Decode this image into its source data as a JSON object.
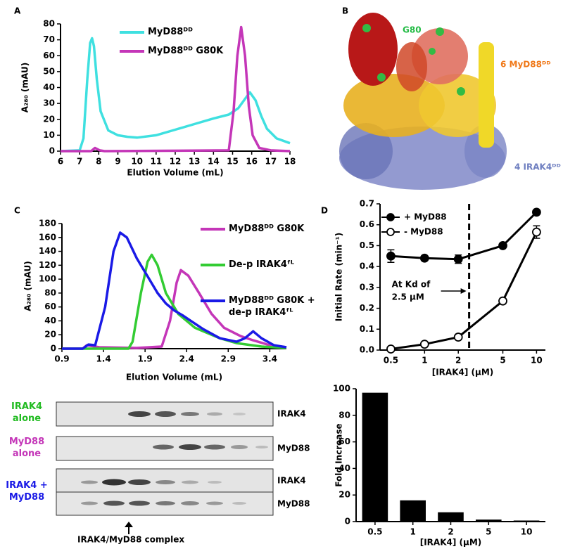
{
  "panel_labels": [
    "A",
    "B",
    "C",
    "D"
  ],
  "structure": {
    "labels": [
      "G80",
      "6 MyD88ᴰᴰ",
      "4 IRAK4ᴰᴰ"
    ]
  },
  "gel": {
    "left_labels": [
      "IRAK4 alone",
      "MyD88 alone",
      "IRAK4 + MyD88"
    ],
    "right_labels": [
      "IRAK4",
      "MyD88",
      "IRAK4",
      "MyD88"
    ],
    "caption": "IRAK4/MyD88 complex"
  },
  "chart_data": [
    {
      "type": "line",
      "x_label": "Elution Volume (mL)",
      "y_label": "A₂₈₀ (mAU)",
      "xlim": [
        6,
        18
      ],
      "xticks": [
        6,
        7,
        8,
        9,
        10,
        11,
        12,
        13,
        14,
        15,
        16,
        17,
        18
      ],
      "ylim": [
        0,
        80
      ],
      "yticks": [
        0,
        10,
        20,
        30,
        40,
        50,
        60,
        70,
        80
      ],
      "series": [
        {
          "name": "MyD88ᴰᴰ",
          "color": "#3fe0e0",
          "x": [
            6,
            7,
            7.2,
            7.4,
            7.55,
            7.65,
            7.75,
            7.9,
            8.1,
            8.5,
            9,
            9.5,
            10,
            11,
            12,
            13,
            14,
            14.8,
            15.3,
            15.6,
            15.9,
            16.2,
            16.5,
            16.8,
            17.3,
            18
          ],
          "values": [
            0,
            0.5,
            8,
            45,
            68,
            71,
            66,
            45,
            25,
            13,
            10,
            9,
            8.5,
            10,
            13.5,
            17,
            20.5,
            23,
            27,
            32,
            37,
            32,
            22,
            14,
            8,
            5
          ]
        },
        {
          "name": "MyD88ᴰᴰ G80K",
          "color": "#c436b8",
          "x": [
            6,
            7.6,
            7.8,
            8.05,
            8.3,
            14.8,
            15.05,
            15.25,
            15.45,
            15.65,
            15.85,
            16.05,
            16.4,
            17,
            18
          ],
          "values": [
            0,
            0,
            2,
            0.5,
            0,
            0.5,
            25,
            60,
            78,
            60,
            28,
            10,
            2,
            0.5,
            0
          ]
        }
      ]
    },
    {
      "type": "line",
      "x_label": "Elution Volume (mL)",
      "y_label": "A₂₈₀ (mAU)",
      "xlim": [
        0.9,
        3.6
      ],
      "xticks": [
        0.9,
        1.4,
        1.9,
        2.4,
        2.9,
        3.4
      ],
      "ylim": [
        0,
        180
      ],
      "yticks": [
        0,
        20,
        40,
        60,
        80,
        100,
        120,
        140,
        160,
        180
      ],
      "series": [
        {
          "name": "MyD88ᴰᴰ G80K",
          "color": "#c436b8",
          "x": [
            0.9,
            1.15,
            1.2,
            1.35,
            1.8,
            2.1,
            2.2,
            2.28,
            2.33,
            2.42,
            2.55,
            2.7,
            2.85,
            3.05,
            3.2,
            3.4,
            3.6
          ],
          "values": [
            0,
            0,
            5,
            2,
            1,
            3,
            40,
            95,
            113,
            105,
            80,
            50,
            30,
            18,
            12,
            5,
            2
          ]
        },
        {
          "name": "De-p IRAK4ᶠᴸ",
          "color": "#33cc33",
          "x": [
            0.9,
            1.7,
            1.75,
            1.85,
            1.93,
            1.98,
            2.05,
            2.15,
            2.3,
            2.5,
            2.8,
            3.0,
            3.3,
            3.6
          ],
          "values": [
            0,
            0,
            10,
            80,
            125,
            135,
            120,
            80,
            50,
            30,
            15,
            8,
            3,
            1
          ]
        },
        {
          "name": "MyD88ᴰᴰ G80K + de-p IRAK4ᶠᴸ",
          "color": "#1a1ae6",
          "x": [
            0.9,
            1.15,
            1.22,
            1.3,
            1.42,
            1.52,
            1.6,
            1.68,
            1.8,
            1.95,
            2.05,
            2.15,
            2.25,
            2.35,
            2.45,
            2.6,
            2.8,
            3.0,
            3.1,
            3.2,
            3.3,
            3.45,
            3.6
          ],
          "values": [
            0,
            0,
            6,
            5,
            60,
            140,
            167,
            160,
            130,
            100,
            80,
            65,
            55,
            48,
            40,
            28,
            15,
            10,
            15,
            25,
            15,
            5,
            2
          ]
        }
      ]
    },
    {
      "type": "errorline",
      "x_label": "[IRAK4] (µM)",
      "y_label": "Initial Rate (min⁻¹)",
      "xlog": true,
      "xlim": [
        0.4,
        12
      ],
      "xticks": [
        0.5,
        1,
        2,
        5,
        10
      ],
      "ylim": [
        0,
        0.7
      ],
      "yticks": [
        {
          "value": 0,
          "label": "0.0"
        },
        0.1,
        0.2,
        0.3,
        0.4,
        0.5,
        0.6,
        0.7
      ],
      "vline": 2.5,
      "annotation": [
        "At Kd of",
        "2.5 µM"
      ],
      "series": [
        {
          "name": "+ MyD88",
          "color": "#000000",
          "marker": "filled",
          "x": [
            0.5,
            1,
            2,
            5,
            10
          ],
          "values": [
            0.45,
            0.44,
            0.435,
            0.5,
            0.66
          ],
          "errors": [
            0.03,
            0.008,
            0.02,
            0.008,
            0.01
          ]
        },
        {
          "name": "- MyD88",
          "color": "#000000",
          "marker": "open",
          "x": [
            0.5,
            1,
            2,
            5,
            10
          ],
          "values": [
            0.005,
            0.028,
            0.062,
            0.235,
            0.565
          ],
          "errors": [
            0.004,
            0.005,
            0.005,
            0.012,
            0.03
          ]
        }
      ]
    },
    {
      "type": "bar",
      "x_label": "[IRAK4] (µM)",
      "y_label": "Fold Increase",
      "categories": [
        "0.5",
        "1",
        "2",
        "5",
        "10"
      ],
      "values": [
        97,
        16,
        7,
        1.5,
        0.8
      ],
      "color": "#000000",
      "ylim": [
        0,
        100
      ],
      "yticks": [
        0,
        20,
        40,
        60,
        80,
        100
      ]
    }
  ]
}
